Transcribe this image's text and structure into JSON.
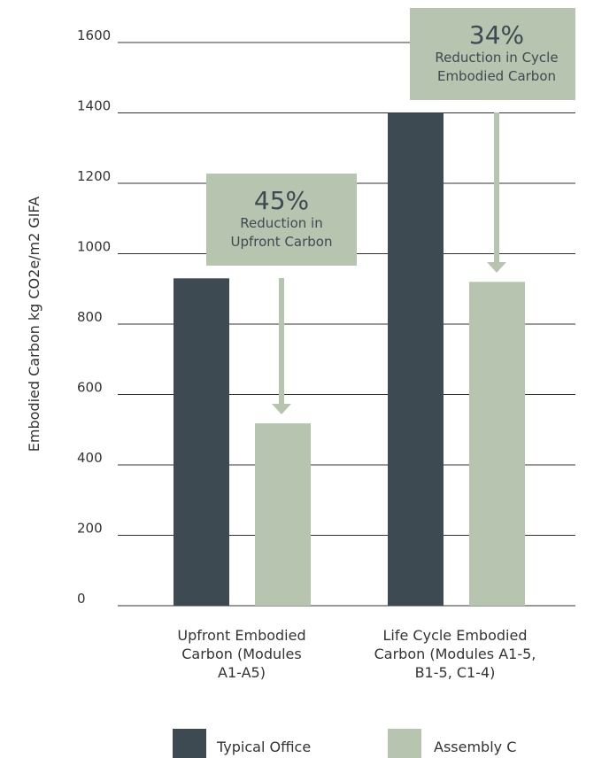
{
  "chart_data": {
    "type": "bar",
    "ylabel": "Embodied Carbon kg CO2e/m2 GIFA",
    "ylim": [
      0,
      1600
    ],
    "yticks": [
      0,
      200,
      400,
      600,
      800,
      1000,
      1200,
      1400,
      1600
    ],
    "categories": [
      [
        "Upfront Embodied",
        "Carbon (Modules",
        "A1-A5)"
      ],
      [
        "Life Cycle Embodied",
        "Carbon (Modules A1-5,",
        "B1-5, C1-4)"
      ]
    ],
    "series": [
      {
        "name": "Typical Office",
        "color": "#3d4a52",
        "values": [
          930,
          1400
        ]
      },
      {
        "name": "Assembly C",
        "color": "#b7c4b0",
        "values": [
          518,
          920
        ]
      }
    ],
    "annotations": [
      {
        "percent": "45%",
        "lines": [
          "Reduction in",
          "Upfront Carbon"
        ],
        "category": 0
      },
      {
        "percent": "34%",
        "lines": [
          "Reduction in Cycle",
          "Embodied Carbon"
        ],
        "category": 1
      }
    ],
    "grid": true,
    "legend": "bottom",
    "colors": {
      "axis": "#333333",
      "text": "#333333",
      "annotation_bg": "#b7c4b0",
      "arrow": "#b7c4b0"
    }
  }
}
